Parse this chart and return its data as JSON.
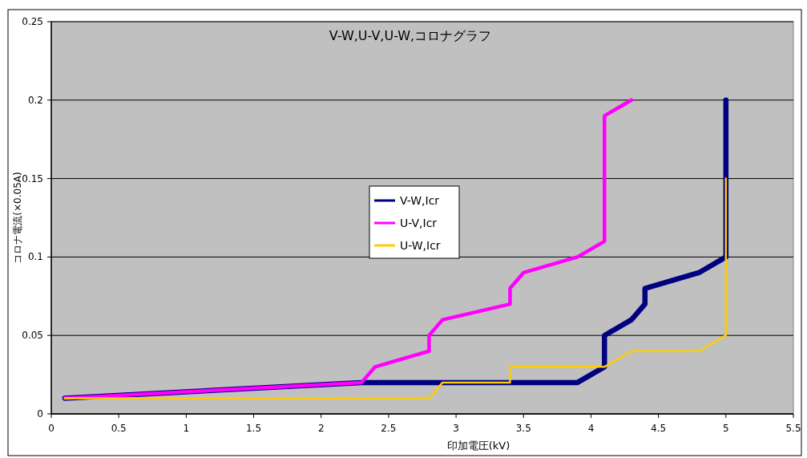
{
  "chart_data": {
    "type": "line",
    "title": "V-W,U-V,U-W,コロナグラフ",
    "xlabel": "印加電圧(kV)",
    "ylabel": "コロナ電流(×0.05A)",
    "xlim": [
      0,
      5.5
    ],
    "xticks": [
      0,
      0.5,
      1,
      1.5,
      2,
      2.5,
      3,
      3.5,
      4,
      4.5,
      5,
      5.5
    ],
    "ylim": [
      0,
      0.25
    ],
    "yticks": [
      0,
      0.05,
      0.1,
      0.15,
      0.2,
      0.25
    ],
    "grid": "y",
    "legend": "center",
    "marker": "none",
    "line_style": "solid",
    "series": [
      {
        "name": "V-W,Icr",
        "color": "#000080",
        "x": [
          0.1,
          2.3,
          3.9,
          4.1,
          4.1,
          4.3,
          4.4,
          4.4,
          4.8,
          5,
          5
        ],
        "values": [
          0.01,
          0.02,
          0.02,
          0.03,
          0.05,
          0.06,
          0.07,
          0.08,
          0.09,
          0.1,
          0.2
        ]
      },
      {
        "name": "U-V,Icr",
        "color": "#ff00ff",
        "x": [
          0.1,
          2.3,
          2.4,
          2.8,
          2.8,
          2.9,
          3.4,
          3.4,
          3.5,
          3.9,
          4.1,
          4.1,
          4.3
        ],
        "values": [
          0.01,
          0.02,
          0.03,
          0.04,
          0.05,
          0.06,
          0.07,
          0.08,
          0.09,
          0.1,
          0.11,
          0.19,
          0.2
        ]
      },
      {
        "name": "U-W,Icr",
        "color": "#ffcc00",
        "x": [
          0.1,
          2.8,
          2.9,
          3.4,
          3.4,
          4.1,
          4.3,
          4.8,
          5,
          5
        ],
        "values": [
          0.01,
          0.01,
          0.02,
          0.02,
          0.03,
          0.03,
          0.04,
          0.04,
          0.05,
          0.15
        ]
      }
    ]
  }
}
